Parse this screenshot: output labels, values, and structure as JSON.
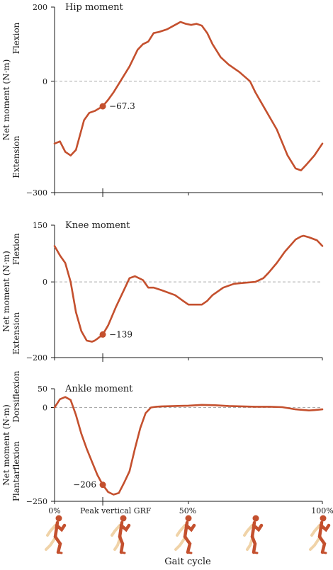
{
  "chart_data": [
    {
      "type": "line",
      "title": "Hip moment",
      "ylabel": "Net moment (N·m)",
      "positive_label": "Flexion",
      "negative_label": "Extension",
      "ylim": [
        -300,
        200
      ],
      "y_ticks": [
        200,
        0,
        -300
      ],
      "y_tick_labels": [
        "200",
        "0",
        "−300"
      ],
      "zero_line": "dashed",
      "x": [
        0,
        2,
        4,
        6,
        8,
        11,
        13,
        15,
        18,
        20,
        22,
        25,
        28,
        31,
        33,
        35,
        37,
        39,
        42,
        45,
        47,
        49,
        51,
        53,
        55,
        57,
        59,
        62,
        65,
        69,
        73,
        75,
        79,
        83,
        87,
        90,
        92,
        94,
        97,
        100
      ],
      "values": [
        -168,
        -162,
        -190,
        -200,
        -185,
        -105,
        -85,
        -80,
        -67.3,
        -50,
        -30,
        5,
        40,
        85,
        100,
        107,
        130,
        133,
        140,
        152,
        160,
        155,
        152,
        155,
        150,
        130,
        100,
        65,
        45,
        25,
        0,
        -30,
        -80,
        -130,
        -200,
        -235,
        -240,
        -225,
        -200,
        -168
      ],
      "marker": {
        "x": 18,
        "y": -67.3,
        "label": "−67.3"
      },
      "color": "#c4502e"
    },
    {
      "type": "line",
      "title": "Knee moment",
      "ylabel": "Net moment (N·m)",
      "positive_label": "Flexion",
      "negative_label": "Extension",
      "ylim": [
        -200,
        150
      ],
      "y_ticks": [
        150,
        0,
        -200
      ],
      "y_tick_labels": [
        "150",
        "0",
        "−200"
      ],
      "zero_line": "dashed",
      "x": [
        0,
        2,
        4,
        6,
        8,
        10,
        12,
        14,
        15,
        16,
        18,
        20,
        23,
        26,
        28,
        30,
        33,
        35,
        37,
        40,
        45,
        48,
        50,
        55,
        57,
        59,
        63,
        67,
        70,
        75,
        78,
        80,
        83,
        86,
        90,
        92,
        93,
        95,
        98,
        100
      ],
      "values": [
        95,
        70,
        50,
        0,
        -80,
        -130,
        -155,
        -158,
        -155,
        -150,
        -139,
        -115,
        -65,
        -20,
        10,
        15,
        5,
        -15,
        -15,
        -22,
        -35,
        -50,
        -60,
        -60,
        -50,
        -35,
        -15,
        -5,
        -3,
        0,
        10,
        25,
        50,
        80,
        112,
        120,
        122,
        118,
        110,
        95
      ],
      "marker": {
        "x": 18,
        "y": -139,
        "label": "−139"
      },
      "color": "#c4502e"
    },
    {
      "type": "line",
      "title": "Ankle moment",
      "ylabel": "Net moment (N·m)",
      "positive_label": "Dorsiflexion",
      "negative_label": "Plantarflexion",
      "ylim": [
        -250,
        50
      ],
      "y_ticks": [
        50,
        0,
        -250
      ],
      "y_tick_labels": [
        "50",
        "0",
        "−250"
      ],
      "zero_line": "dashed",
      "x": [
        0,
        2,
        4,
        6,
        8,
        10,
        12,
        14,
        16,
        18,
        20,
        22,
        24,
        26,
        28,
        30,
        32,
        34,
        36,
        38,
        40,
        45,
        50,
        55,
        60,
        65,
        70,
        75,
        80,
        85,
        90,
        95,
        97,
        100
      ],
      "values": [
        0,
        22,
        28,
        20,
        -20,
        -70,
        -110,
        -145,
        -180,
        -206,
        -225,
        -232,
        -228,
        -200,
        -170,
        -110,
        -55,
        -15,
        0,
        2,
        3,
        4,
        5,
        7,
        6,
        4,
        3,
        2,
        2,
        1,
        -5,
        -8,
        -7,
        -5
      ],
      "marker": {
        "x": 18,
        "y": -206,
        "label": "−206"
      },
      "color": "#c4502e"
    }
  ],
  "x_axis": {
    "label": "Gait cycle",
    "xlim": [
      0,
      100
    ],
    "ticks": [
      0,
      50,
      100
    ],
    "tick_labels": [
      "0%",
      "50%",
      "100%"
    ],
    "event_x": 18,
    "event_label": "Peak vertical GRF"
  },
  "runner_icons": [
    "runner-icon",
    "runner-icon",
    "runner-icon",
    "runner-icon",
    "runner-icon"
  ],
  "colors": {
    "line": "#c4502e",
    "runner_body": "#c4502e",
    "runner_ghost": "#f0d3a8",
    "axis": "#1a1a1a",
    "zero_line": "#aaaaaa"
  }
}
